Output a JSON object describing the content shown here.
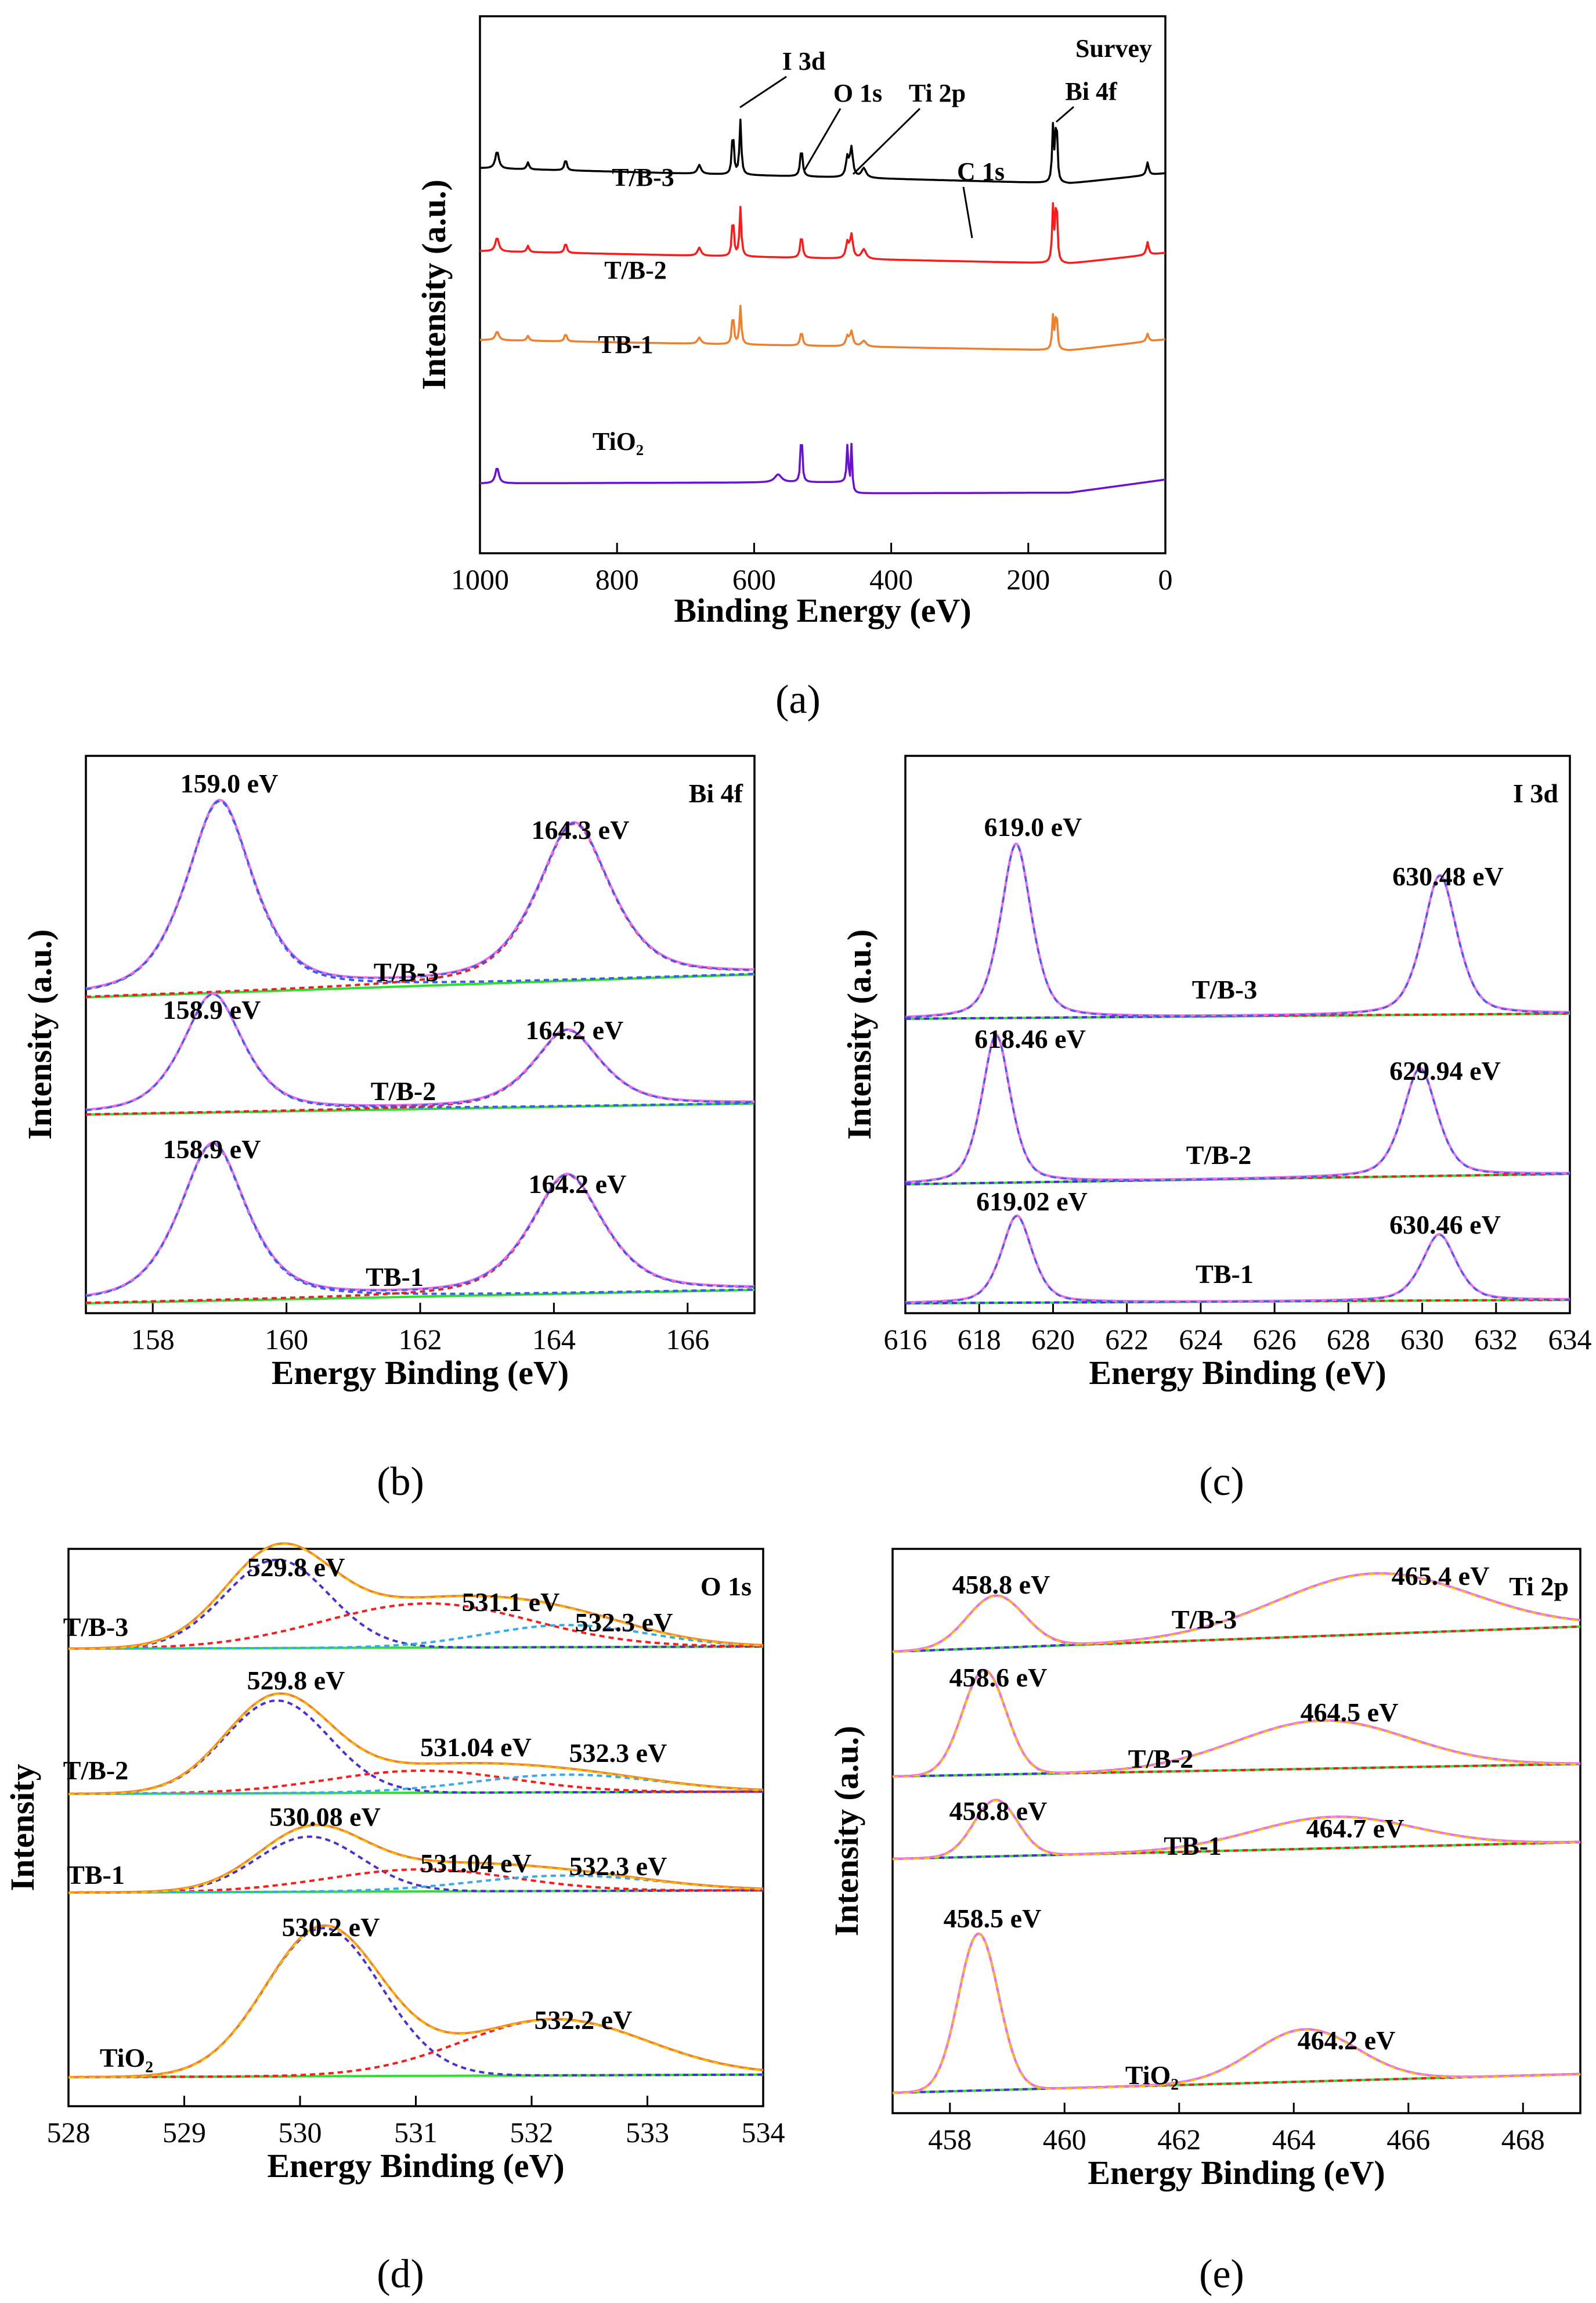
{
  "colors": {
    "black": "#000000",
    "red": "#ff1a1a",
    "orange": "#f07f2d",
    "purple": "#6a0fd6",
    "pink": "#ee6ee6",
    "green": "#2ee02e",
    "blue": "#3c5bf2",
    "yellow": "#f5c400",
    "darkred": "#e8202a",
    "indigo": "#4a2fd6",
    "cyan": "#33aaee"
  },
  "chart_data": [
    {
      "id": "a",
      "type": "line",
      "sublabel": "(a)",
      "title": "Survey",
      "xlabel": "Binding Energy (eV)",
      "ylabel": "Intensity (a.u.)",
      "xlim": [
        1000,
        0
      ],
      "xticks": [
        1000,
        800,
        600,
        400,
        200,
        0
      ],
      "reversed_x": true,
      "series_labels": [
        "T/B-3",
        "T/B-2",
        "TB-1",
        "TiO₂"
      ],
      "annotations": [
        "I 3d",
        "O 1s",
        "Ti 2p",
        "C 1s",
        "Bi 4f"
      ],
      "annotation_positions_eV": [
        620,
        531,
        458,
        285,
        159
      ]
    },
    {
      "id": "b",
      "type": "line",
      "sublabel": "(b)",
      "title": "Bi 4f",
      "xlabel": "Energy Binding (eV)",
      "ylabel": "Intensity (a.u.)",
      "xlim": [
        157,
        167
      ],
      "xticks": [
        158,
        160,
        162,
        164,
        166
      ],
      "series": [
        {
          "name": "T/B-3",
          "peaks": [
            "159.0 eV",
            "164.3 eV"
          ],
          "centers": [
            159.0,
            164.3
          ]
        },
        {
          "name": "T/B-2",
          "peaks": [
            "158.9 eV",
            "164.2 eV"
          ],
          "centers": [
            158.9,
            164.2
          ]
        },
        {
          "name": "TB-1",
          "peaks": [
            "158.9 eV",
            "164.2 eV"
          ],
          "centers": [
            158.9,
            164.2
          ]
        }
      ]
    },
    {
      "id": "c",
      "type": "line",
      "sublabel": "(c)",
      "title": "I 3d",
      "xlabel": "Energy Binding  (eV)",
      "ylabel": "Intensity (a.u.)",
      "xlim": [
        616,
        634
      ],
      "xticks": [
        616,
        618,
        620,
        622,
        624,
        626,
        628,
        630,
        632,
        634
      ],
      "series": [
        {
          "name": "T/B-3",
          "peaks": [
            "619.0 eV",
            "630.48 eV"
          ],
          "centers": [
            619.0,
            630.48
          ]
        },
        {
          "name": "T/B-2",
          "peaks": [
            "618.46 eV",
            "629.94 eV"
          ],
          "centers": [
            618.46,
            629.94
          ]
        },
        {
          "name": "TB-1",
          "peaks": [
            "619.02 eV",
            "630.46 eV"
          ],
          "centers": [
            619.02,
            630.46
          ]
        }
      ]
    },
    {
      "id": "d",
      "type": "line",
      "sublabel": "(d)",
      "title": "O 1s",
      "xlabel": "Energy Binding (eV)",
      "ylabel": "Intensity",
      "xlim": [
        528,
        534
      ],
      "xticks": [
        528,
        529,
        530,
        531,
        532,
        533,
        534
      ],
      "series": [
        {
          "name": "T/B-3",
          "peaks": [
            "529.8 eV",
            "531.1 eV",
            "532.3 eV"
          ],
          "centers": [
            529.8,
            531.1,
            532.3
          ]
        },
        {
          "name": "T/B-2",
          "peaks": [
            "529.8 eV",
            "531.04 eV",
            "532.3 eV"
          ],
          "centers": [
            529.8,
            531.04,
            532.3
          ]
        },
        {
          "name": "TB-1",
          "peaks": [
            "530.08 eV",
            "531.04 eV",
            "532.3 eV"
          ],
          "centers": [
            530.08,
            531.04,
            532.3
          ]
        },
        {
          "name": "TiO₂",
          "peaks": [
            "530.2 eV",
            "532.2 eV"
          ],
          "centers": [
            530.2,
            532.2
          ]
        }
      ]
    },
    {
      "id": "e",
      "type": "line",
      "sublabel": "(e)",
      "title": "Ti 2p",
      "xlabel": "Energy Binding (eV)",
      "ylabel": "Intensity (a.u.)",
      "xlim": [
        457,
        469
      ],
      "xticks": [
        458,
        460,
        462,
        464,
        466,
        468
      ],
      "series": [
        {
          "name": "T/B-3",
          "peaks": [
            "458.8 eV",
            "465.4 eV"
          ],
          "centers": [
            458.8,
            465.4
          ]
        },
        {
          "name": "T/B-2",
          "peaks": [
            "458.6 eV",
            "464.5 eV"
          ],
          "centers": [
            458.6,
            464.5
          ]
        },
        {
          "name": "TB-1",
          "peaks": [
            "458.8 eV",
            "464.7 eV"
          ],
          "centers": [
            458.8,
            464.7
          ]
        },
        {
          "name": "TiO₂",
          "peaks": [
            "458.5 eV",
            "464.2 eV"
          ],
          "centers": [
            458.5,
            464.2
          ]
        }
      ]
    }
  ]
}
